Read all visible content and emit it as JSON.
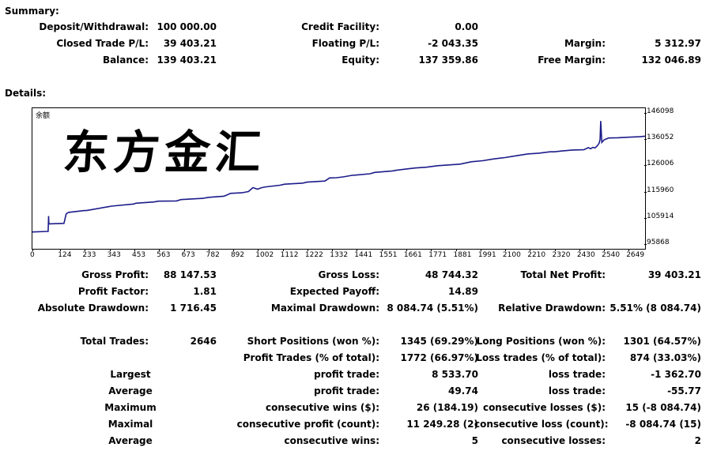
{
  "summary": {
    "title": "Summary:",
    "deposit_label": "Deposit/Withdrawal:",
    "deposit_value": "100 000.00",
    "credit_label": "Credit Facility:",
    "credit_value": "0.00",
    "closed_pl_label": "Closed Trade P/L:",
    "closed_pl_value": "39 403.21",
    "floating_pl_label": "Floating P/L:",
    "floating_pl_value": "-2 043.35",
    "margin_label": "Margin:",
    "margin_value": "5 312.97",
    "balance_label": "Balance:",
    "balance_value": "139 403.21",
    "equity_label": "Equity:",
    "equity_value": "137 359.86",
    "free_margin_label": "Free Margin:",
    "free_margin_value": "132 046.89"
  },
  "details": {
    "title": "Details:"
  },
  "chart": {
    "corner_label": "余额",
    "watermark": "东方金汇",
    "line_color": "#1c1c8a"
  },
  "chart_data": {
    "type": "line",
    "title": "",
    "x_ticks": [
      "0",
      "124",
      "233",
      "343",
      "453",
      "563",
      "673",
      "782",
      "892",
      "1002",
      "1112",
      "1222",
      "1332",
      "1441",
      "1551",
      "1661",
      "1771",
      "1881",
      "1991",
      "2100",
      "2210",
      "2320",
      "2430",
      "2540",
      "2649"
    ],
    "y_ticks": [
      "146098",
      "136052",
      "126006",
      "115960",
      "105914",
      "95868"
    ],
    "xlim": [
      0,
      2722
    ],
    "ylim": [
      95868,
      146098
    ],
    "series": [
      {
        "name": "",
        "x": [
          0,
          66,
          70,
          72,
          73,
          75,
          140,
          150,
          160,
          230,
          240,
          340,
          350,
          450,
          460,
          540,
          560,
          640,
          660,
          760,
          770,
          790,
          850,
          860,
          880,
          930,
          960,
          980,
          1000,
          1010,
          1020,
          1040,
          1100,
          1120,
          1200,
          1220,
          1300,
          1320,
          1350,
          1380,
          1420,
          1440,
          1500,
          1520,
          1600,
          1620,
          1700,
          1750,
          1800,
          1850,
          1900,
          1950,
          2000,
          2050,
          2100,
          2150,
          2200,
          2250,
          2300,
          2320,
          2350,
          2400,
          2450,
          2470,
          2480,
          2490,
          2500,
          2510,
          2518,
          2522,
          2525,
          2530,
          2540,
          2560,
          2600,
          2650,
          2700,
          2722
        ],
        "y": [
          100500,
          100700,
          100700,
          106600,
          103500,
          103600,
          103800,
          107400,
          108000,
          108700,
          108700,
          110200,
          110400,
          111200,
          111500,
          112000,
          112300,
          112400,
          112900,
          113400,
          113600,
          113800,
          114200,
          114500,
          115300,
          115500,
          116000,
          117500,
          116900,
          117200,
          117500,
          117800,
          118400,
          118800,
          119200,
          119600,
          120000,
          121200,
          121300,
          121600,
          122200,
          122300,
          122800,
          123300,
          123900,
          124200,
          125000,
          125300,
          125900,
          126200,
          126500,
          127400,
          127800,
          128500,
          129000,
          129700,
          130400,
          130700,
          131200,
          131200,
          131500,
          131900,
          132000,
          132800,
          132400,
          132900,
          132700,
          133500,
          134500,
          136000,
          143000,
          134800,
          135800,
          136500,
          136600,
          136800,
          137000,
          137200
        ]
      }
    ]
  },
  "stats": {
    "gross_profit_label": "Gross Profit:",
    "gross_profit_value": "88 147.53",
    "gross_loss_label": "Gross Loss:",
    "gross_loss_value": "48 744.32",
    "net_profit_label": "Total Net Profit:",
    "net_profit_value": "39 403.21",
    "profit_factor_label": "Profit Factor:",
    "profit_factor_value": "1.81",
    "expected_payoff_label": "Expected Payoff:",
    "expected_payoff_value": "14.89",
    "abs_drawdown_label": "Absolute Drawdown:",
    "abs_drawdown_value": "1 716.45",
    "max_drawdown_label": "Maximal Drawdown:",
    "max_drawdown_value": "8 084.74 (5.51%)",
    "rel_drawdown_label": "Relative Drawdown:",
    "rel_drawdown_value": "5.51% (8 084.74)",
    "total_trades_label": "Total Trades:",
    "total_trades_value": "2646",
    "short_label": "Short Positions (won %):",
    "short_value": "1345 (69.29%)",
    "long_label": "Long Positions (won %):",
    "long_value": "1301 (64.57%)",
    "profit_trades_label": "Profit Trades (% of total):",
    "profit_trades_value": "1772 (66.97%)",
    "loss_trades_label": "Loss trades (% of total):",
    "loss_trades_value": "874 (33.03%)",
    "largest_label": "Largest",
    "largest_profit_label": "profit trade:",
    "largest_profit_value": "8 533.70",
    "largest_loss_label": "loss trade:",
    "largest_loss_value": "-1 362.70",
    "average_label": "Average",
    "average_profit_label": "profit trade:",
    "average_profit_value": "49.74",
    "average_loss_label": "loss trade:",
    "average_loss_value": "-55.77",
    "maximum_label": "Maximum",
    "max_cons_wins_label": "consecutive wins ($):",
    "max_cons_wins_value": "26 (184.19)",
    "max_cons_losses_label": "consecutive losses ($):",
    "max_cons_losses_value": "15 (-8 084.74)",
    "maximal_label": "Maximal",
    "maximal_cons_profit_label": "consecutive profit (count):",
    "maximal_cons_profit_value": "11 249.28 (2)",
    "maximal_cons_loss_label": "consecutive loss (count):",
    "maximal_cons_loss_value": "-8 084.74 (15)",
    "average2_label": "Average",
    "avg_cons_wins_label": "consecutive wins:",
    "avg_cons_wins_value": "5",
    "avg_cons_losses_label": "consecutive losses:",
    "avg_cons_losses_value": "2"
  }
}
